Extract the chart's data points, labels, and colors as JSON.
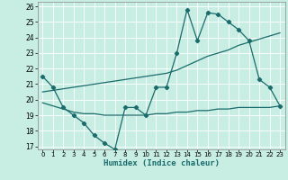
{
  "xlabel": "Humidex (Indice chaleur)",
  "bg_color": "#c8eee4",
  "line_color": "#1a6b6b",
  "xlim": [
    -0.5,
    23.5
  ],
  "ylim": [
    16.8,
    26.3
  ],
  "xticks": [
    0,
    1,
    2,
    3,
    4,
    5,
    6,
    7,
    8,
    9,
    10,
    11,
    12,
    13,
    14,
    15,
    16,
    17,
    18,
    19,
    20,
    21,
    22,
    23
  ],
  "yticks": [
    17,
    18,
    19,
    20,
    21,
    22,
    23,
    24,
    25,
    26
  ],
  "line1_x": [
    0,
    1,
    2,
    3,
    4,
    5,
    6,
    7,
    8,
    9,
    10,
    11,
    12,
    13,
    14,
    15,
    16,
    17,
    18,
    19,
    20,
    21,
    22,
    23
  ],
  "line1_y": [
    21.5,
    20.8,
    19.5,
    19.0,
    18.5,
    17.7,
    17.2,
    16.8,
    19.5,
    19.5,
    19.0,
    20.8,
    20.8,
    23.0,
    25.8,
    23.8,
    25.6,
    25.5,
    25.0,
    24.5,
    23.8,
    21.3,
    20.8,
    19.6
  ],
  "line2_x": [
    0,
    1,
    2,
    3,
    4,
    5,
    6,
    7,
    8,
    9,
    10,
    11,
    12,
    13,
    14,
    15,
    16,
    17,
    18,
    19,
    20,
    21,
    22,
    23
  ],
  "line2_y": [
    19.8,
    19.6,
    19.4,
    19.2,
    19.1,
    19.1,
    19.0,
    19.0,
    19.0,
    19.0,
    19.0,
    19.1,
    19.1,
    19.2,
    19.2,
    19.3,
    19.3,
    19.4,
    19.4,
    19.5,
    19.5,
    19.5,
    19.5,
    19.6
  ],
  "line3_x": [
    0,
    1,
    2,
    3,
    4,
    5,
    6,
    7,
    8,
    9,
    10,
    11,
    12,
    13,
    14,
    15,
    16,
    17,
    18,
    19,
    20,
    21,
    22,
    23
  ],
  "line3_y": [
    20.5,
    20.6,
    20.7,
    20.8,
    20.9,
    21.0,
    21.1,
    21.2,
    21.3,
    21.4,
    21.5,
    21.6,
    21.7,
    21.9,
    22.2,
    22.5,
    22.8,
    23.0,
    23.2,
    23.5,
    23.7,
    23.9,
    24.1,
    24.3
  ]
}
